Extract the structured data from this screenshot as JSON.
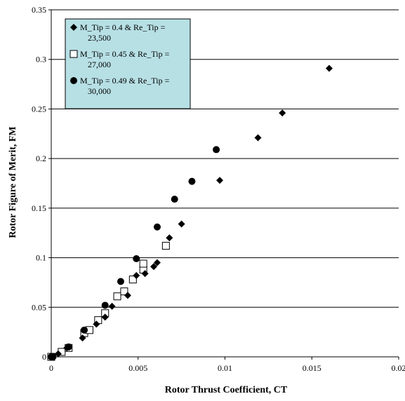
{
  "chart_data": {
    "type": "scatter",
    "title": "",
    "xlabel": "Rotor Thrust Coefficient, CT",
    "ylabel": "Rotor Figure of Merit, FM",
    "xlim": [
      0,
      0.02
    ],
    "ylim": [
      0,
      0.35
    ],
    "x_ticks": [
      0,
      0.005,
      0.01,
      0.015,
      0.02
    ],
    "x_tick_labels": [
      "0",
      "0.005",
      "0.01",
      "0.015",
      "0.02"
    ],
    "y_ticks": [
      0,
      0.05,
      0.1,
      0.15,
      0.2,
      0.25,
      0.3,
      0.35
    ],
    "y_tick_labels": [
      "0",
      "0.05",
      "0.1",
      "0.15",
      "0.2",
      "0.25",
      "0.3",
      "0.35"
    ],
    "grid": "horizontal",
    "legend_position": "top-left",
    "legend_background": "#b7e0e5",
    "series": [
      {
        "name_lines": [
          "M_Tip = 0.4 & Re_Tip =",
          "23,500"
        ],
        "marker": "diamond",
        "color": "#000000",
        "points": [
          [
            0.0,
            0.0
          ],
          [
            0.0004,
            0.003
          ],
          [
            0.0009,
            0.009
          ],
          [
            0.0018,
            0.019
          ],
          [
            0.0026,
            0.033
          ],
          [
            0.0031,
            0.04
          ],
          [
            0.0035,
            0.051
          ],
          [
            0.0044,
            0.062
          ],
          [
            0.0049,
            0.082
          ],
          [
            0.0054,
            0.084
          ],
          [
            0.0059,
            0.091
          ],
          [
            0.0061,
            0.095
          ],
          [
            0.0068,
            0.12
          ],
          [
            0.0075,
            0.134
          ],
          [
            0.0097,
            0.178
          ],
          [
            0.0119,
            0.221
          ],
          [
            0.0133,
            0.246
          ],
          [
            0.016,
            0.291
          ]
        ]
      },
      {
        "name_lines": [
          "M_Tip = 0.45 & Re_Tip =",
          "27,000"
        ],
        "marker": "open-square",
        "color": "#000000",
        "points": [
          [
            0.0,
            0.0
          ],
          [
            0.0006,
            0.005
          ],
          [
            0.001,
            0.009
          ],
          [
            0.0019,
            0.024
          ],
          [
            0.0022,
            0.027
          ],
          [
            0.0027,
            0.037
          ],
          [
            0.0031,
            0.044
          ],
          [
            0.0038,
            0.061
          ],
          [
            0.0042,
            0.066
          ],
          [
            0.0047,
            0.078
          ],
          [
            0.0053,
            0.088
          ],
          [
            0.0053,
            0.094
          ],
          [
            0.0066,
            0.112
          ]
        ]
      },
      {
        "name_lines": [
          "M_Tip = 0.49 & Re_Tip =",
          "30,000"
        ],
        "marker": "filled-circle",
        "color": "#000000",
        "points": [
          [
            0.0,
            0.0
          ],
          [
            0.0001,
            0.0
          ],
          [
            0.001,
            0.01
          ],
          [
            0.0019,
            0.027
          ],
          [
            0.0031,
            0.052
          ],
          [
            0.004,
            0.076
          ],
          [
            0.0049,
            0.099
          ],
          [
            0.0061,
            0.131
          ],
          [
            0.0071,
            0.159
          ],
          [
            0.0081,
            0.177
          ],
          [
            0.0095,
            0.209
          ]
        ]
      }
    ]
  }
}
